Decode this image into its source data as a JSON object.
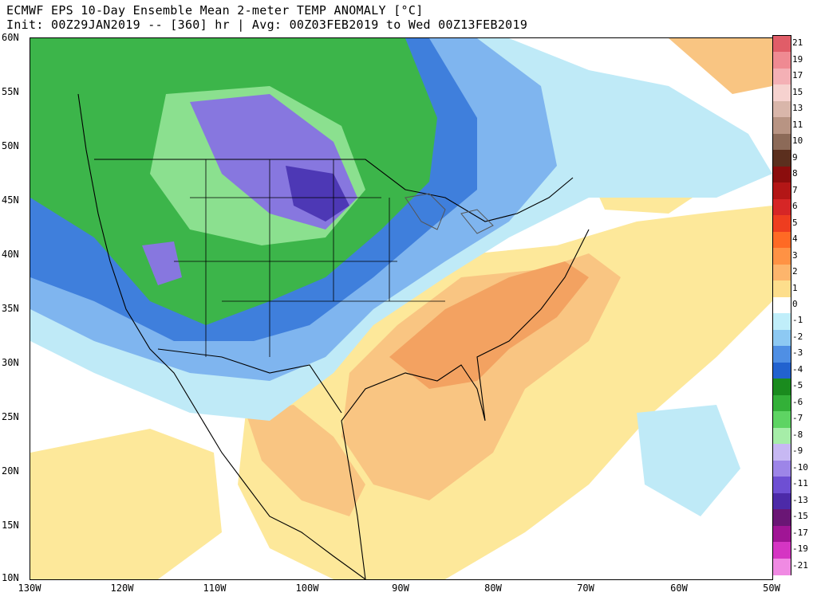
{
  "title_line1": "ECMWF EPS 10-Day Ensemble Mean 2-meter TEMP ANOMALY [°C]",
  "title_line2": "Init: 00Z29JAN2019 -- [360] hr | Avg: 00Z03FEB2019 to Wed 00Z13FEB2019",
  "lat_labels": [
    "60N",
    "55N",
    "50N",
    "45N",
    "40N",
    "35N",
    "30N",
    "25N",
    "20N",
    "15N",
    "10N"
  ],
  "lon_labels": [
    "130W",
    "120W",
    "110W",
    "100W",
    "90W",
    "80W",
    "70W",
    "60W",
    "50W"
  ],
  "colorbar": {
    "labels": [
      "21",
      "19",
      "17",
      "15",
      "13",
      "11",
      "10",
      "9",
      "8",
      "7",
      "6",
      "5",
      "4",
      "3",
      "2",
      "1",
      "0",
      "-1",
      "-2",
      "-3",
      "-4",
      "-5",
      "-6",
      "-7",
      "-8",
      "-9",
      "-10",
      "-11",
      "-13",
      "-15",
      "-17",
      "-19",
      "-21"
    ],
    "colors": [
      "#e05d68",
      "#ef8a92",
      "#f4b0b5",
      "#f6d2cf",
      "#d9b6aa",
      "#b89483",
      "#8c6a58",
      "#5b2f1e",
      "#8b0d0d",
      "#b31616",
      "#d62626",
      "#ee3d1f",
      "#ff6a24",
      "#ff9244",
      "#fdb56c",
      "#fdde8c",
      "#ffffff",
      "#c0eefa",
      "#8dc9f3",
      "#4f8fe4",
      "#2262cf",
      "#1a8b1e",
      "#33b038",
      "#5ed463",
      "#a6eda8",
      "#c7b8f3",
      "#9d85e8",
      "#6e4fd3",
      "#4c2aa8",
      "#6a1675",
      "#a01595",
      "#d535c3",
      "#f08ae3"
    ]
  },
  "colors": {
    "warm_light": "#fde89a",
    "warm_mid": "#f9c582",
    "warm_orange": "#f3a261",
    "cool_light": "#bfeaf7",
    "cool_mid": "#7fb5ef",
    "cool_blue": "#3f7fdc",
    "green": "#3cb54a",
    "green_light": "#8be08f",
    "purple": "#8777df",
    "purple_dark": "#4d38b5",
    "border": "#000000",
    "lakes": "#555555"
  }
}
